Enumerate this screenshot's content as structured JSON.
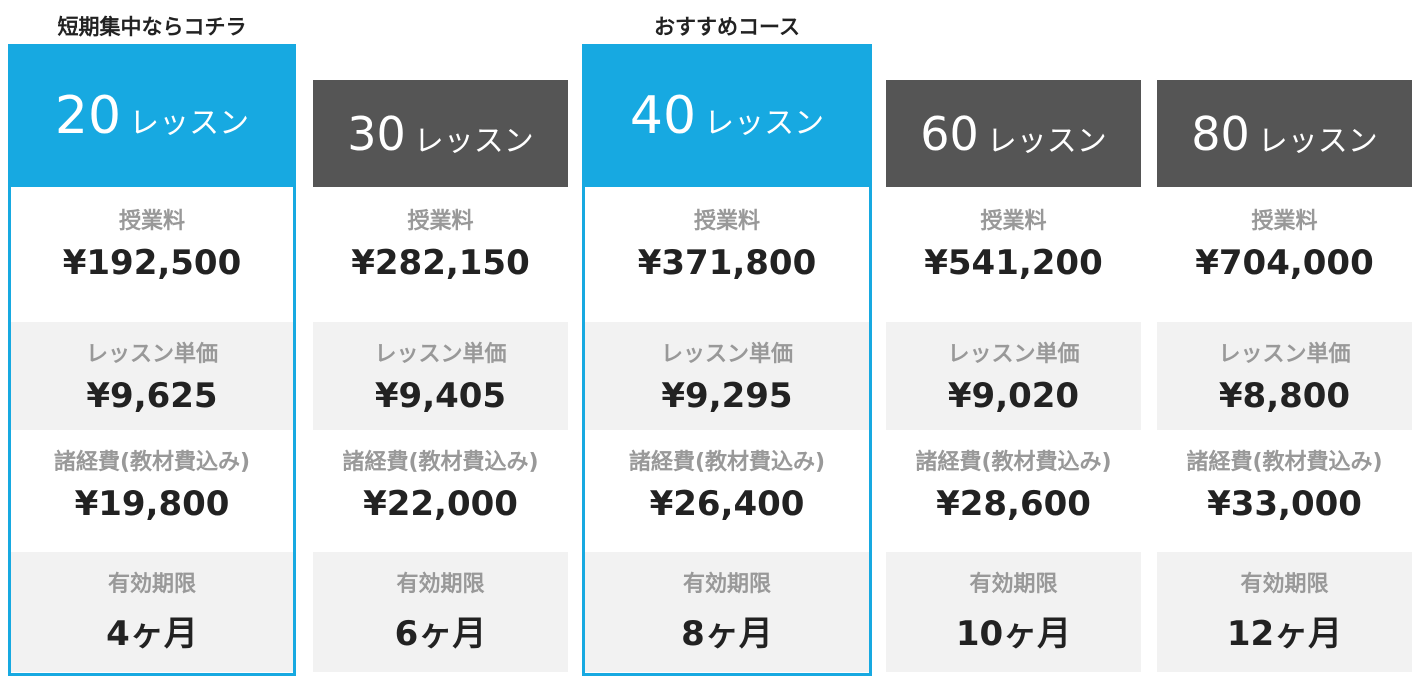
{
  "labels": {
    "unit": "レッスン",
    "fee": "授業料",
    "unit_price": "レッスン単価",
    "expenses": "諸経費(教材費込み)",
    "validity": "有効期限"
  },
  "plans": [
    {
      "badge": "短期集中ならコチラ",
      "lessons": 20,
      "fee": "¥192,500",
      "unit_price": "¥9,625",
      "expenses": "¥19,800",
      "validity": "4ヶ月"
    },
    {
      "lessons": 30,
      "fee": "¥282,150",
      "unit_price": "¥9,405",
      "expenses": "¥22,000",
      "validity": "6ヶ月"
    },
    {
      "badge": "おすすめコース",
      "lessons": 40,
      "fee": "¥371,800",
      "unit_price": "¥9,295",
      "expenses": "¥26,400",
      "validity": "8ヶ月"
    },
    {
      "lessons": 60,
      "fee": "¥541,200",
      "unit_price": "¥9,020",
      "expenses": "¥28,600",
      "validity": "10ヶ月"
    },
    {
      "lessons": 80,
      "fee": "¥704,000",
      "unit_price": "¥8,800",
      "expenses": "¥33,000",
      "validity": "12ヶ月"
    }
  ]
}
